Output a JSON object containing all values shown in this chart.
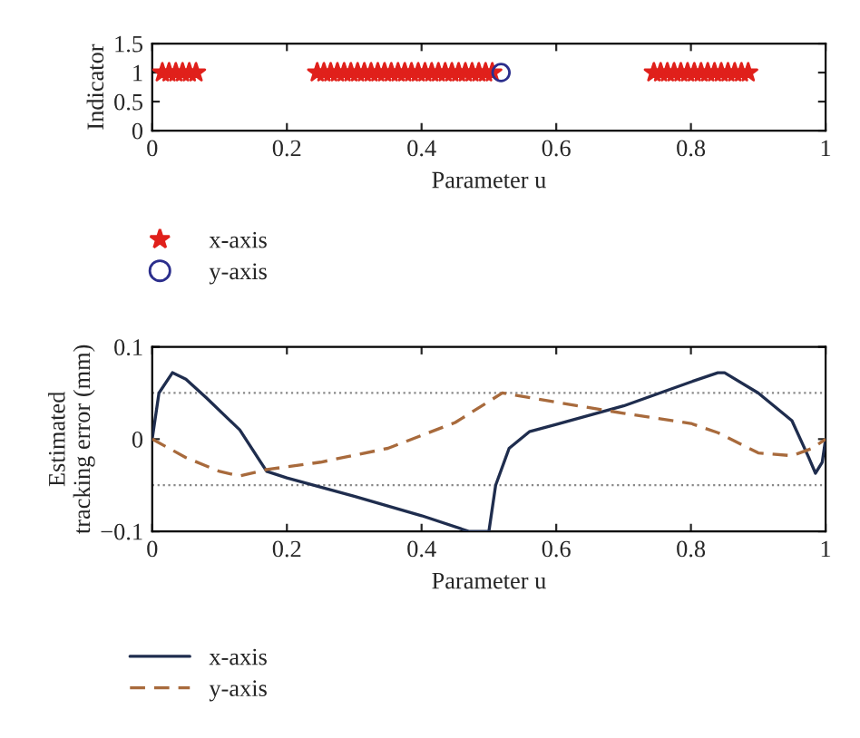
{
  "chart_data": [
    {
      "type": "scatter",
      "xlabel": "Parameter u",
      "ylabel": "Indicator",
      "xlim": [
        0,
        1
      ],
      "ylim": [
        0,
        1.5
      ],
      "xticks": [
        0,
        {
          "value": 0.2,
          "label": "0.2"
        },
        {
          "value": 0.4,
          "label": "0.4"
        },
        {
          "value": 0.6,
          "label": "0.6"
        },
        {
          "value": 0.8,
          "label": "0.8"
        },
        1
      ],
      "yticks": [
        0,
        0.5,
        1,
        1.5
      ],
      "legend": "bottom",
      "grid": false,
      "series": [
        {
          "name": "x-axis",
          "color": "#e0201b",
          "marker": "star",
          "x": [
            0.015,
            0.025,
            0.035,
            0.045,
            0.055,
            0.065,
            0.245,
            0.255,
            0.265,
            0.275,
            0.285,
            0.295,
            0.305,
            0.315,
            0.325,
            0.335,
            0.345,
            0.355,
            0.365,
            0.375,
            0.385,
            0.395,
            0.405,
            0.415,
            0.425,
            0.435,
            0.445,
            0.455,
            0.465,
            0.475,
            0.485,
            0.495,
            0.505,
            0.745,
            0.755,
            0.765,
            0.775,
            0.785,
            0.795,
            0.805,
            0.815,
            0.825,
            0.835,
            0.845,
            0.855,
            0.865,
            0.875,
            0.885
          ],
          "values": [
            1,
            1,
            1,
            1,
            1,
            1,
            1,
            1,
            1,
            1,
            1,
            1,
            1,
            1,
            1,
            1,
            1,
            1,
            1,
            1,
            1,
            1,
            1,
            1,
            1,
            1,
            1,
            1,
            1,
            1,
            1,
            1,
            1,
            1,
            1,
            1,
            1,
            1,
            1,
            1,
            1,
            1,
            1,
            1,
            1,
            1,
            1,
            1
          ]
        },
        {
          "name": "y-axis",
          "color": "#2b2e8c",
          "marker": "circle",
          "x": [
            0.518
          ],
          "values": [
            1
          ]
        }
      ]
    },
    {
      "type": "line",
      "xlabel": "Parameter u",
      "ylabel": "Estimated\ntracking error (mm)",
      "xlim": [
        0,
        1
      ],
      "ylim": [
        -0.1,
        0.1
      ],
      "xticks": [
        0,
        {
          "value": 0.2,
          "label": "0.2"
        },
        {
          "value": 0.4,
          "label": "0.4"
        },
        {
          "value": 0.6,
          "label": "0.6"
        },
        {
          "value": 0.8,
          "label": "0.8"
        },
        1
      ],
      "yticks": [
        {
          "value": -0.1,
          "label": "−0.1"
        },
        0,
        0.1
      ],
      "legend": "bottom",
      "grid": false,
      "ref_lines": [
        {
          "axis": "y",
          "value": 0.05,
          "color": "#888888",
          "line_style": "dotted"
        },
        {
          "axis": "y",
          "value": -0.05,
          "color": "#888888",
          "line_style": "dotted"
        }
      ],
      "series": [
        {
          "name": "x-axis",
          "color": "#1f2d4e",
          "line_style": "solid",
          "x": [
            0,
            0.01,
            0.03,
            0.05,
            0.08,
            0.13,
            0.17,
            0.2,
            0.3,
            0.4,
            0.47,
            0.5,
            0.51,
            0.53,
            0.56,
            0.6,
            0.7,
            0.8,
            0.84,
            0.85,
            0.9,
            0.95,
            0.975,
            0.985,
            0.995,
            1.0
          ],
          "values": [
            0,
            0.05,
            0.072,
            0.065,
            0.045,
            0.01,
            -0.035,
            -0.042,
            -0.062,
            -0.083,
            -0.1,
            -0.1,
            -0.05,
            -0.01,
            0.008,
            0.016,
            0.036,
            0.062,
            0.072,
            0.072,
            0.05,
            0.02,
            -0.02,
            -0.037,
            -0.025,
            0
          ]
        },
        {
          "name": "y-axis",
          "color": "#a86a3c",
          "line_style": "dashed",
          "x": [
            0,
            0.05,
            0.1,
            0.13,
            0.17,
            0.25,
            0.35,
            0.45,
            0.52,
            0.6,
            0.7,
            0.8,
            0.84,
            0.9,
            0.95,
            0.98,
            1
          ],
          "values": [
            0,
            -0.02,
            -0.035,
            -0.04,
            -0.033,
            -0.025,
            -0.01,
            0.018,
            0.05,
            0.04,
            0.028,
            0.017,
            0.007,
            -0.015,
            -0.018,
            -0.01,
            0
          ]
        }
      ]
    }
  ]
}
